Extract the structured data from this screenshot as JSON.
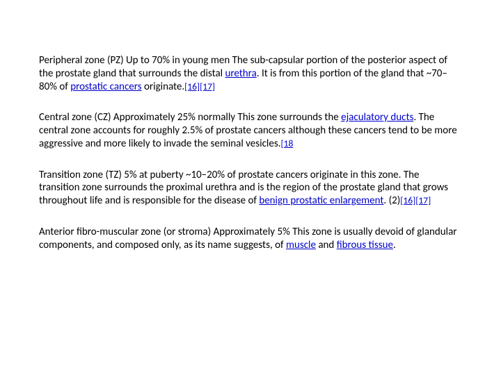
{
  "paragraphs": {
    "pz": {
      "t1": "Peripheral zone (PZ) Up to 70% in young men The sub-capsular portion of the posterior aspect of the prostate gland that surrounds the distal ",
      "link1": "urethra",
      "t2": ". It is from this portion of the gland that ~70–80% of ",
      "link2": "prostatic cancers",
      "t3": " originate.",
      "ref1": "[16]",
      "ref2": "[17]"
    },
    "cz": {
      "t1": "Central zone (CZ) Approximately 25% normally This zone surrounds the ",
      "link1": "ejaculatory ducts",
      "t2": ". The central zone accounts for roughly 2.5% of prostate cancers although these cancers tend to be more aggressive and more likely to invade the seminal vesicles.",
      "ref1": "[18"
    },
    "tz": {
      "t1": "Transition zone (TZ) 5% at puberty ~10–20% of prostate cancers originate in this zone. The transition zone surrounds the proximal urethra and is the region of the prostate gland that grows throughout life and is responsible for the disease of ",
      "link1": "benign prostatic enlargement",
      "t2": ". (2)",
      "ref1": "[16]",
      "ref2": "[17]"
    },
    "af": {
      "t1": "Anterior fibro-muscular zone (or stroma) Approximately 5% This zone is usually devoid of glandular components, and composed only, as its name suggests, of ",
      "link1": "muscle",
      "t2": " and ",
      "link2": "fibrous tissue",
      "t3": "."
    }
  }
}
